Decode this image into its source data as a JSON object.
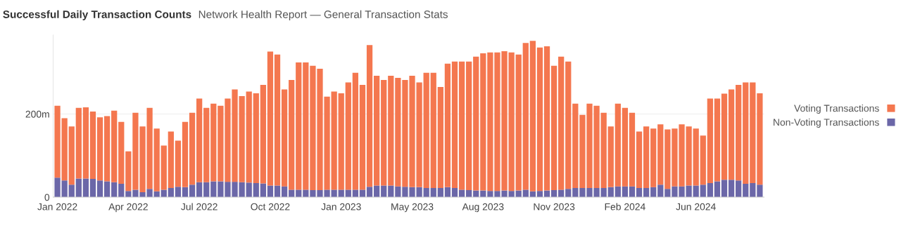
{
  "chart_data": {
    "type": "bar",
    "stacked": true,
    "title": "Successful Daily Transaction Counts",
    "subtitle": "Network Health Report — General Transaction Stats",
    "categories": [
      "Jan 2022",
      null,
      null,
      null,
      null,
      null,
      null,
      null,
      null,
      null,
      "Apr 2022",
      null,
      null,
      null,
      null,
      null,
      null,
      null,
      null,
      null,
      "Jul 2022",
      null,
      null,
      null,
      null,
      null,
      null,
      null,
      null,
      null,
      "Oct 2022",
      null,
      null,
      null,
      null,
      null,
      null,
      null,
      null,
      null,
      "Jan 2023",
      null,
      null,
      null,
      null,
      null,
      null,
      null,
      null,
      null,
      "May 2023",
      null,
      null,
      null,
      null,
      null,
      null,
      null,
      null,
      null,
      "Aug 2023",
      null,
      null,
      null,
      null,
      null,
      null,
      null,
      null,
      null,
      "Nov 2023",
      null,
      null,
      null,
      null,
      null,
      null,
      null,
      null,
      null,
      "Feb 2024",
      null,
      null,
      null,
      null,
      null,
      null,
      null,
      null,
      null,
      "Jun 2024",
      null,
      null,
      null,
      null,
      null,
      null,
      null,
      null,
      null
    ],
    "series": [
      {
        "name": "Non-Voting Transactions",
        "color": "#6b67a8",
        "values": [
          47,
          40,
          30,
          45,
          45,
          44,
          40,
          38,
          36,
          32,
          15,
          18,
          12,
          20,
          14,
          18,
          22,
          25,
          24,
          30,
          36,
          36,
          38,
          38,
          37,
          37,
          36,
          35,
          34,
          33,
          28,
          28,
          26,
          18,
          18,
          18,
          17,
          17,
          18,
          18,
          18,
          18,
          18,
          18,
          25,
          28,
          28,
          28,
          26,
          25,
          24,
          24,
          22,
          22,
          22,
          24,
          22,
          18,
          17,
          16,
          16,
          15,
          15,
          16,
          15,
          16,
          18,
          14,
          15,
          16,
          17,
          18,
          20,
          22,
          22,
          22,
          22,
          22,
          24,
          26,
          26,
          26,
          22,
          22,
          24,
          30,
          20,
          26,
          26,
          28,
          28,
          30,
          34,
          38,
          42,
          42,
          40,
          32,
          34,
          30
        ]
      },
      {
        "name": "Voting Transactions",
        "color": "#f4774f",
        "values": [
          173,
          150,
          140,
          170,
          171,
          162,
          152,
          157,
          172,
          149,
          95,
          185,
          158,
          195,
          151,
          106,
          136,
          111,
          157,
          173,
          201,
          179,
          187,
          182,
          200,
          222,
          207,
          219,
          216,
          237,
          322,
          315,
          233,
          264,
          306,
          306,
          299,
          292,
          224,
          236,
          232,
          258,
          281,
          252,
          341,
          264,
          254,
          264,
          261,
          257,
          268,
          252,
          277,
          277,
          243,
          297,
          304,
          308,
          309,
          322,
          330,
          333,
          333,
          335,
          333,
          327,
          353,
          362,
          345,
          347,
          299,
          320,
          306,
          203,
          176,
          203,
          198,
          181,
          146,
          199,
          189,
          177,
          136,
          148,
          141,
          145,
          143,
          139,
          149,
          142,
          137,
          118,
          203,
          199,
          207,
          217,
          230,
          244,
          242,
          220
        ]
      }
    ],
    "ylim": [
      0,
      390
    ],
    "yticks": [
      0,
      {
        "value": 200,
        "label": "200m"
      }
    ],
    "grid": "y",
    "legend": "right"
  }
}
